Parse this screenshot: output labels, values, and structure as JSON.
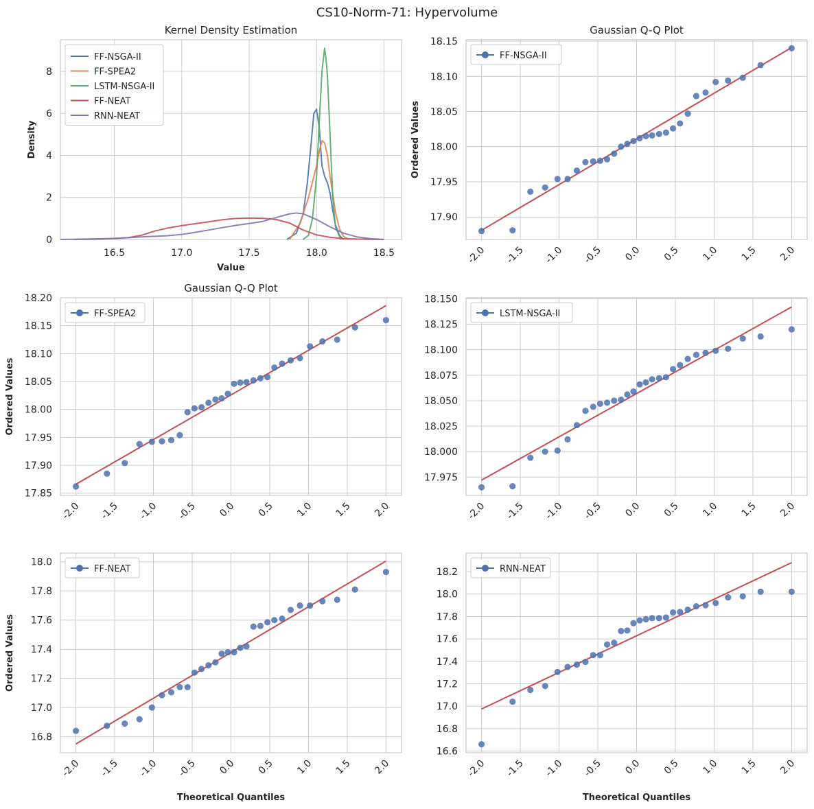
{
  "figure_title": "CS10-Norm-71: Hypervolume",
  "colors": {
    "blue": "#4c72b0",
    "orange": "#dd8452",
    "green": "#55a868",
    "red": "#c44e52",
    "purple": "#8172b3",
    "fit_line": "#c44e52",
    "grid": "#cccccc",
    "text": "#262626"
  },
  "chart_data": [
    {
      "id": "kde",
      "type": "line",
      "title": "Kernel Density Estimation",
      "xlabel": "Value",
      "ylabel": "Density",
      "xlim": [
        16.1,
        18.63
      ],
      "ylim": [
        0,
        9.5
      ],
      "xticks": [
        16.5,
        17.0,
        17.5,
        18.0,
        18.5
      ],
      "xtick_labels": [
        "16.5",
        "17.0",
        "17.5",
        "18.0",
        "18.5"
      ],
      "yticks": [
        0,
        2,
        4,
        6,
        8
      ],
      "ytick_labels": [
        "0",
        "2",
        "4",
        "6",
        "8"
      ],
      "legend_position": "top-left",
      "series": [
        {
          "name": "FF-NSGA-II",
          "color": "#4c72b0",
          "x": [
            17.78,
            17.85,
            17.9,
            17.93,
            17.96,
            17.98,
            18.0,
            18.02,
            18.04,
            18.06,
            18.08,
            18.1,
            18.12,
            18.14,
            18.17,
            18.2
          ],
          "y": [
            0,
            0.3,
            1.2,
            2.6,
            4.6,
            6.0,
            6.2,
            5.3,
            3.5,
            3.0,
            2.7,
            2.2,
            1.4,
            0.7,
            0.2,
            0
          ]
        },
        {
          "name": "FF-SPEA2",
          "color": "#dd8452",
          "x": [
            17.8,
            17.88,
            17.94,
            17.98,
            18.0,
            18.02,
            18.04,
            18.06,
            18.08,
            18.1,
            18.12,
            18.14,
            18.17,
            18.2,
            18.24
          ],
          "y": [
            0,
            0.8,
            2.0,
            3.0,
            3.5,
            4.2,
            4.7,
            4.6,
            4.0,
            3.0,
            2.2,
            1.3,
            0.5,
            0.15,
            0
          ]
        },
        {
          "name": "LSTM-NSGA-II",
          "color": "#55a868",
          "x": [
            17.9,
            17.94,
            17.97,
            18.0,
            18.02,
            18.04,
            18.06,
            18.07,
            18.08,
            18.1,
            18.12,
            18.14,
            18.18
          ],
          "y": [
            0,
            0.2,
            1.0,
            3.0,
            5.6,
            8.0,
            9.1,
            8.6,
            7.8,
            5.0,
            2.0,
            0.6,
            0
          ]
        },
        {
          "name": "FF-NEAT",
          "color": "#c44e52",
          "x": [
            16.2,
            16.4,
            16.6,
            16.7,
            16.8,
            16.9,
            17.0,
            17.1,
            17.2,
            17.3,
            17.4,
            17.5,
            17.6,
            17.7,
            17.8,
            17.9,
            18.0,
            18.1,
            18.2,
            18.3,
            18.4,
            18.5
          ],
          "y": [
            0,
            0.02,
            0.08,
            0.2,
            0.4,
            0.55,
            0.66,
            0.75,
            0.84,
            0.94,
            1.0,
            1.02,
            1.01,
            0.95,
            0.78,
            0.45,
            0.22,
            0.1,
            0.04,
            0.02,
            0.01,
            0
          ]
        },
        {
          "name": "RNN-NEAT",
          "color": "#8172b3",
          "x": [
            16.1,
            16.3,
            16.5,
            16.7,
            16.9,
            17.0,
            17.1,
            17.2,
            17.3,
            17.4,
            17.5,
            17.6,
            17.7,
            17.8,
            17.85,
            17.9,
            18.0,
            18.1,
            18.2,
            18.3,
            18.4,
            18.5
          ],
          "y": [
            0,
            0.02,
            0.05,
            0.12,
            0.18,
            0.24,
            0.34,
            0.45,
            0.56,
            0.67,
            0.76,
            0.86,
            1.04,
            1.22,
            1.26,
            1.22,
            0.95,
            0.6,
            0.3,
            0.12,
            0.04,
            0
          ]
        }
      ]
    },
    {
      "id": "qq-ff-nsga2",
      "type": "scatter",
      "title": "Gaussian Q-Q Plot",
      "xlabel": "",
      "ylabel": "Ordered Values",
      "legend": "FF-NSGA-II",
      "xlim": [
        -2.2,
        2.2
      ],
      "ylim": [
        17.868,
        18.152
      ],
      "xticks": [
        -2.0,
        -1.5,
        -1.0,
        -0.5,
        0.0,
        0.5,
        1.0,
        1.5,
        2.0
      ],
      "xtick_labels": [
        "-2.0",
        "-1.5",
        "-1.0",
        "-0.5",
        "0.0",
        "0.5",
        "1.0",
        "1.5",
        "2.0"
      ],
      "yticks": [
        17.9,
        17.95,
        18.0,
        18.05,
        18.1,
        18.15
      ],
      "ytick_labels": [
        "17.90",
        "17.95",
        "18.00",
        "18.05",
        "18.10",
        "18.15"
      ],
      "theoretical": [
        -2.0,
        -1.6,
        -1.37,
        -1.18,
        -1.02,
        -0.89,
        -0.77,
        -0.66,
        -0.56,
        -0.47,
        -0.38,
        -0.29,
        -0.2,
        -0.12,
        -0.04,
        0.04,
        0.12,
        0.2,
        0.29,
        0.38,
        0.47,
        0.56,
        0.66,
        0.77,
        0.89,
        1.02,
        1.18,
        1.37,
        1.6,
        2.0
      ],
      "values": [
        17.88,
        17.881,
        17.936,
        17.942,
        17.954,
        17.954,
        17.966,
        17.978,
        17.979,
        17.98,
        17.982,
        17.99,
        18.0,
        18.004,
        18.008,
        18.012,
        18.015,
        18.016,
        18.018,
        18.02,
        18.026,
        18.033,
        18.047,
        18.072,
        18.077,
        18.092,
        18.094,
        18.098,
        18.116,
        18.14
      ],
      "fit_line": {
        "x": [
          -2.0,
          2.0
        ],
        "y": [
          17.881,
          18.141
        ]
      }
    },
    {
      "id": "qq-ff-spea2",
      "type": "scatter",
      "title": "Gaussian Q-Q Plot",
      "xlabel": "",
      "ylabel": "Ordered Values",
      "legend": "FF-SPEA2",
      "xlim": [
        -2.2,
        2.2
      ],
      "ylim": [
        17.846,
        18.2
      ],
      "xticks": [
        -2.0,
        -1.5,
        -1.0,
        -0.5,
        0.0,
        0.5,
        1.0,
        1.5,
        2.0
      ],
      "xtick_labels": [
        "-2.0",
        "-1.5",
        "-1.0",
        "-0.5",
        "0.0",
        "0.5",
        "1.0",
        "1.5",
        "2.0"
      ],
      "yticks": [
        17.85,
        17.9,
        17.95,
        18.0,
        18.05,
        18.1,
        18.15,
        18.2
      ],
      "ytick_labels": [
        "17.85",
        "17.90",
        "17.95",
        "18.00",
        "18.05",
        "18.10",
        "18.15",
        "18.20"
      ],
      "theoretical": [
        -2.0,
        -1.6,
        -1.37,
        -1.18,
        -1.02,
        -0.89,
        -0.77,
        -0.66,
        -0.56,
        -0.47,
        -0.38,
        -0.29,
        -0.2,
        -0.12,
        -0.04,
        0.04,
        0.12,
        0.2,
        0.29,
        0.38,
        0.47,
        0.56,
        0.66,
        0.77,
        0.89,
        1.02,
        1.18,
        1.37,
        1.6,
        2.0
      ],
      "values": [
        17.862,
        17.885,
        17.904,
        17.938,
        17.942,
        17.943,
        17.945,
        17.954,
        17.995,
        18.002,
        18.004,
        18.012,
        18.018,
        18.02,
        18.028,
        18.046,
        18.048,
        18.049,
        18.052,
        18.056,
        18.058,
        18.075,
        18.082,
        18.088,
        18.092,
        18.113,
        18.122,
        18.125,
        18.147,
        18.16
      ],
      "fit_line": {
        "x": [
          -2.0,
          2.0
        ],
        "y": [
          17.866,
          18.186
        ]
      }
    },
    {
      "id": "qq-lstm-nsga2",
      "type": "scatter",
      "title": "",
      "xlabel": "",
      "ylabel": "",
      "legend": "LSTM-NSGA-II",
      "xlim": [
        -2.2,
        2.2
      ],
      "ylim": [
        17.957,
        18.151
      ],
      "xticks": [
        -2.0,
        -1.5,
        -1.0,
        -0.5,
        0.0,
        0.5,
        1.0,
        1.5,
        2.0
      ],
      "xtick_labels": [
        "-2.0",
        "-1.5",
        "-1.0",
        "-0.5",
        "0.0",
        "0.5",
        "1.0",
        "1.5",
        "2.0"
      ],
      "yticks": [
        17.975,
        18.0,
        18.025,
        18.05,
        18.075,
        18.1,
        18.125,
        18.15
      ],
      "ytick_labels": [
        "17.975",
        "18.000",
        "18.025",
        "18.050",
        "18.075",
        "18.100",
        "18.125",
        "18.150"
      ],
      "theoretical": [
        -2.0,
        -1.6,
        -1.37,
        -1.18,
        -1.02,
        -0.89,
        -0.77,
        -0.66,
        -0.56,
        -0.47,
        -0.38,
        -0.29,
        -0.2,
        -0.12,
        -0.04,
        0.04,
        0.12,
        0.2,
        0.29,
        0.38,
        0.47,
        0.56,
        0.66,
        0.77,
        0.89,
        1.02,
        1.18,
        1.37,
        1.6,
        2.0
      ],
      "values": [
        17.965,
        17.966,
        17.994,
        18.0,
        18.001,
        18.012,
        18.026,
        18.04,
        18.044,
        18.047,
        18.048,
        18.05,
        18.051,
        18.056,
        18.059,
        18.066,
        18.068,
        18.071,
        18.072,
        18.073,
        18.081,
        18.085,
        18.091,
        18.095,
        18.097,
        18.099,
        18.101,
        18.111,
        18.113,
        18.12
      ],
      "fit_line": {
        "x": [
          -2.0,
          2.0
        ],
        "y": [
          17.972,
          18.142
        ]
      }
    },
    {
      "id": "qq-ff-neat",
      "type": "scatter",
      "title": "",
      "xlabel": "Theoretical Quantiles",
      "ylabel": "Ordered Values",
      "legend": "FF-NEAT",
      "xlim": [
        -2.2,
        2.2
      ],
      "ylim": [
        16.69,
        18.06
      ],
      "xticks": [
        -2.0,
        -1.5,
        -1.0,
        -0.5,
        0.0,
        0.5,
        1.0,
        1.5,
        2.0
      ],
      "xtick_labels": [
        "-2.0",
        "-1.5",
        "-1.0",
        "-0.5",
        "0.0",
        "0.5",
        "1.0",
        "1.5",
        "2.0"
      ],
      "yticks": [
        16.8,
        17.0,
        17.2,
        17.4,
        17.6,
        17.8,
        18.0
      ],
      "ytick_labels": [
        "16.8",
        "17.0",
        "17.2",
        "17.4",
        "17.6",
        "17.8",
        "18.0"
      ],
      "theoretical": [
        -2.0,
        -1.6,
        -1.37,
        -1.18,
        -1.02,
        -0.89,
        -0.77,
        -0.66,
        -0.56,
        -0.47,
        -0.38,
        -0.29,
        -0.2,
        -0.12,
        -0.04,
        0.04,
        0.12,
        0.2,
        0.29,
        0.38,
        0.47,
        0.56,
        0.66,
        0.77,
        0.89,
        1.02,
        1.18,
        1.37,
        1.6,
        2.0
      ],
      "values": [
        16.84,
        16.875,
        16.89,
        16.92,
        17.0,
        17.085,
        17.105,
        17.14,
        17.14,
        17.24,
        17.265,
        17.29,
        17.31,
        17.37,
        17.38,
        17.38,
        17.41,
        17.42,
        17.555,
        17.56,
        17.585,
        17.6,
        17.61,
        17.67,
        17.7,
        17.7,
        17.73,
        17.74,
        17.81,
        17.93
      ],
      "fit_line": {
        "x": [
          -2.0,
          2.0
        ],
        "y": [
          16.75,
          18.005
        ]
      }
    },
    {
      "id": "qq-rnn-neat",
      "type": "scatter",
      "title": "",
      "xlabel": "Theoretical Quantiles",
      "ylabel": "",
      "legend": "RNN-NEAT",
      "xlim": [
        -2.2,
        2.2
      ],
      "ylim": [
        16.585,
        18.365
      ],
      "xticks": [
        -2.0,
        -1.5,
        -1.0,
        -0.5,
        0.0,
        0.5,
        1.0,
        1.5,
        2.0
      ],
      "xtick_labels": [
        "-2.0",
        "-1.5",
        "-1.0",
        "-0.5",
        "0.0",
        "0.5",
        "1.0",
        "1.5",
        "2.0"
      ],
      "yticks": [
        16.6,
        16.8,
        17.0,
        17.2,
        17.4,
        17.6,
        17.8,
        18.0,
        18.2
      ],
      "ytick_labels": [
        "16.6",
        "16.8",
        "17.0",
        "17.2",
        "17.4",
        "17.6",
        "17.8",
        "18.0",
        "18.2"
      ],
      "theoretical": [
        -2.0,
        -1.6,
        -1.37,
        -1.18,
        -1.02,
        -0.89,
        -0.77,
        -0.66,
        -0.56,
        -0.47,
        -0.38,
        -0.29,
        -0.2,
        -0.12,
        -0.04,
        0.04,
        0.12,
        0.2,
        0.29,
        0.38,
        0.47,
        0.56,
        0.66,
        0.77,
        0.89,
        1.02,
        1.18,
        1.37,
        1.6,
        2.0
      ],
      "values": [
        16.66,
        17.04,
        17.145,
        17.18,
        17.305,
        17.35,
        17.37,
        17.395,
        17.455,
        17.455,
        17.55,
        17.565,
        17.67,
        17.675,
        17.74,
        17.765,
        17.775,
        17.785,
        17.785,
        17.79,
        17.835,
        17.84,
        17.86,
        17.89,
        17.9,
        17.92,
        17.97,
        17.98,
        18.02,
        18.02
      ],
      "fit_line": {
        "x": [
          -2.0,
          2.0
        ],
        "y": [
          16.975,
          18.28
        ]
      }
    }
  ]
}
